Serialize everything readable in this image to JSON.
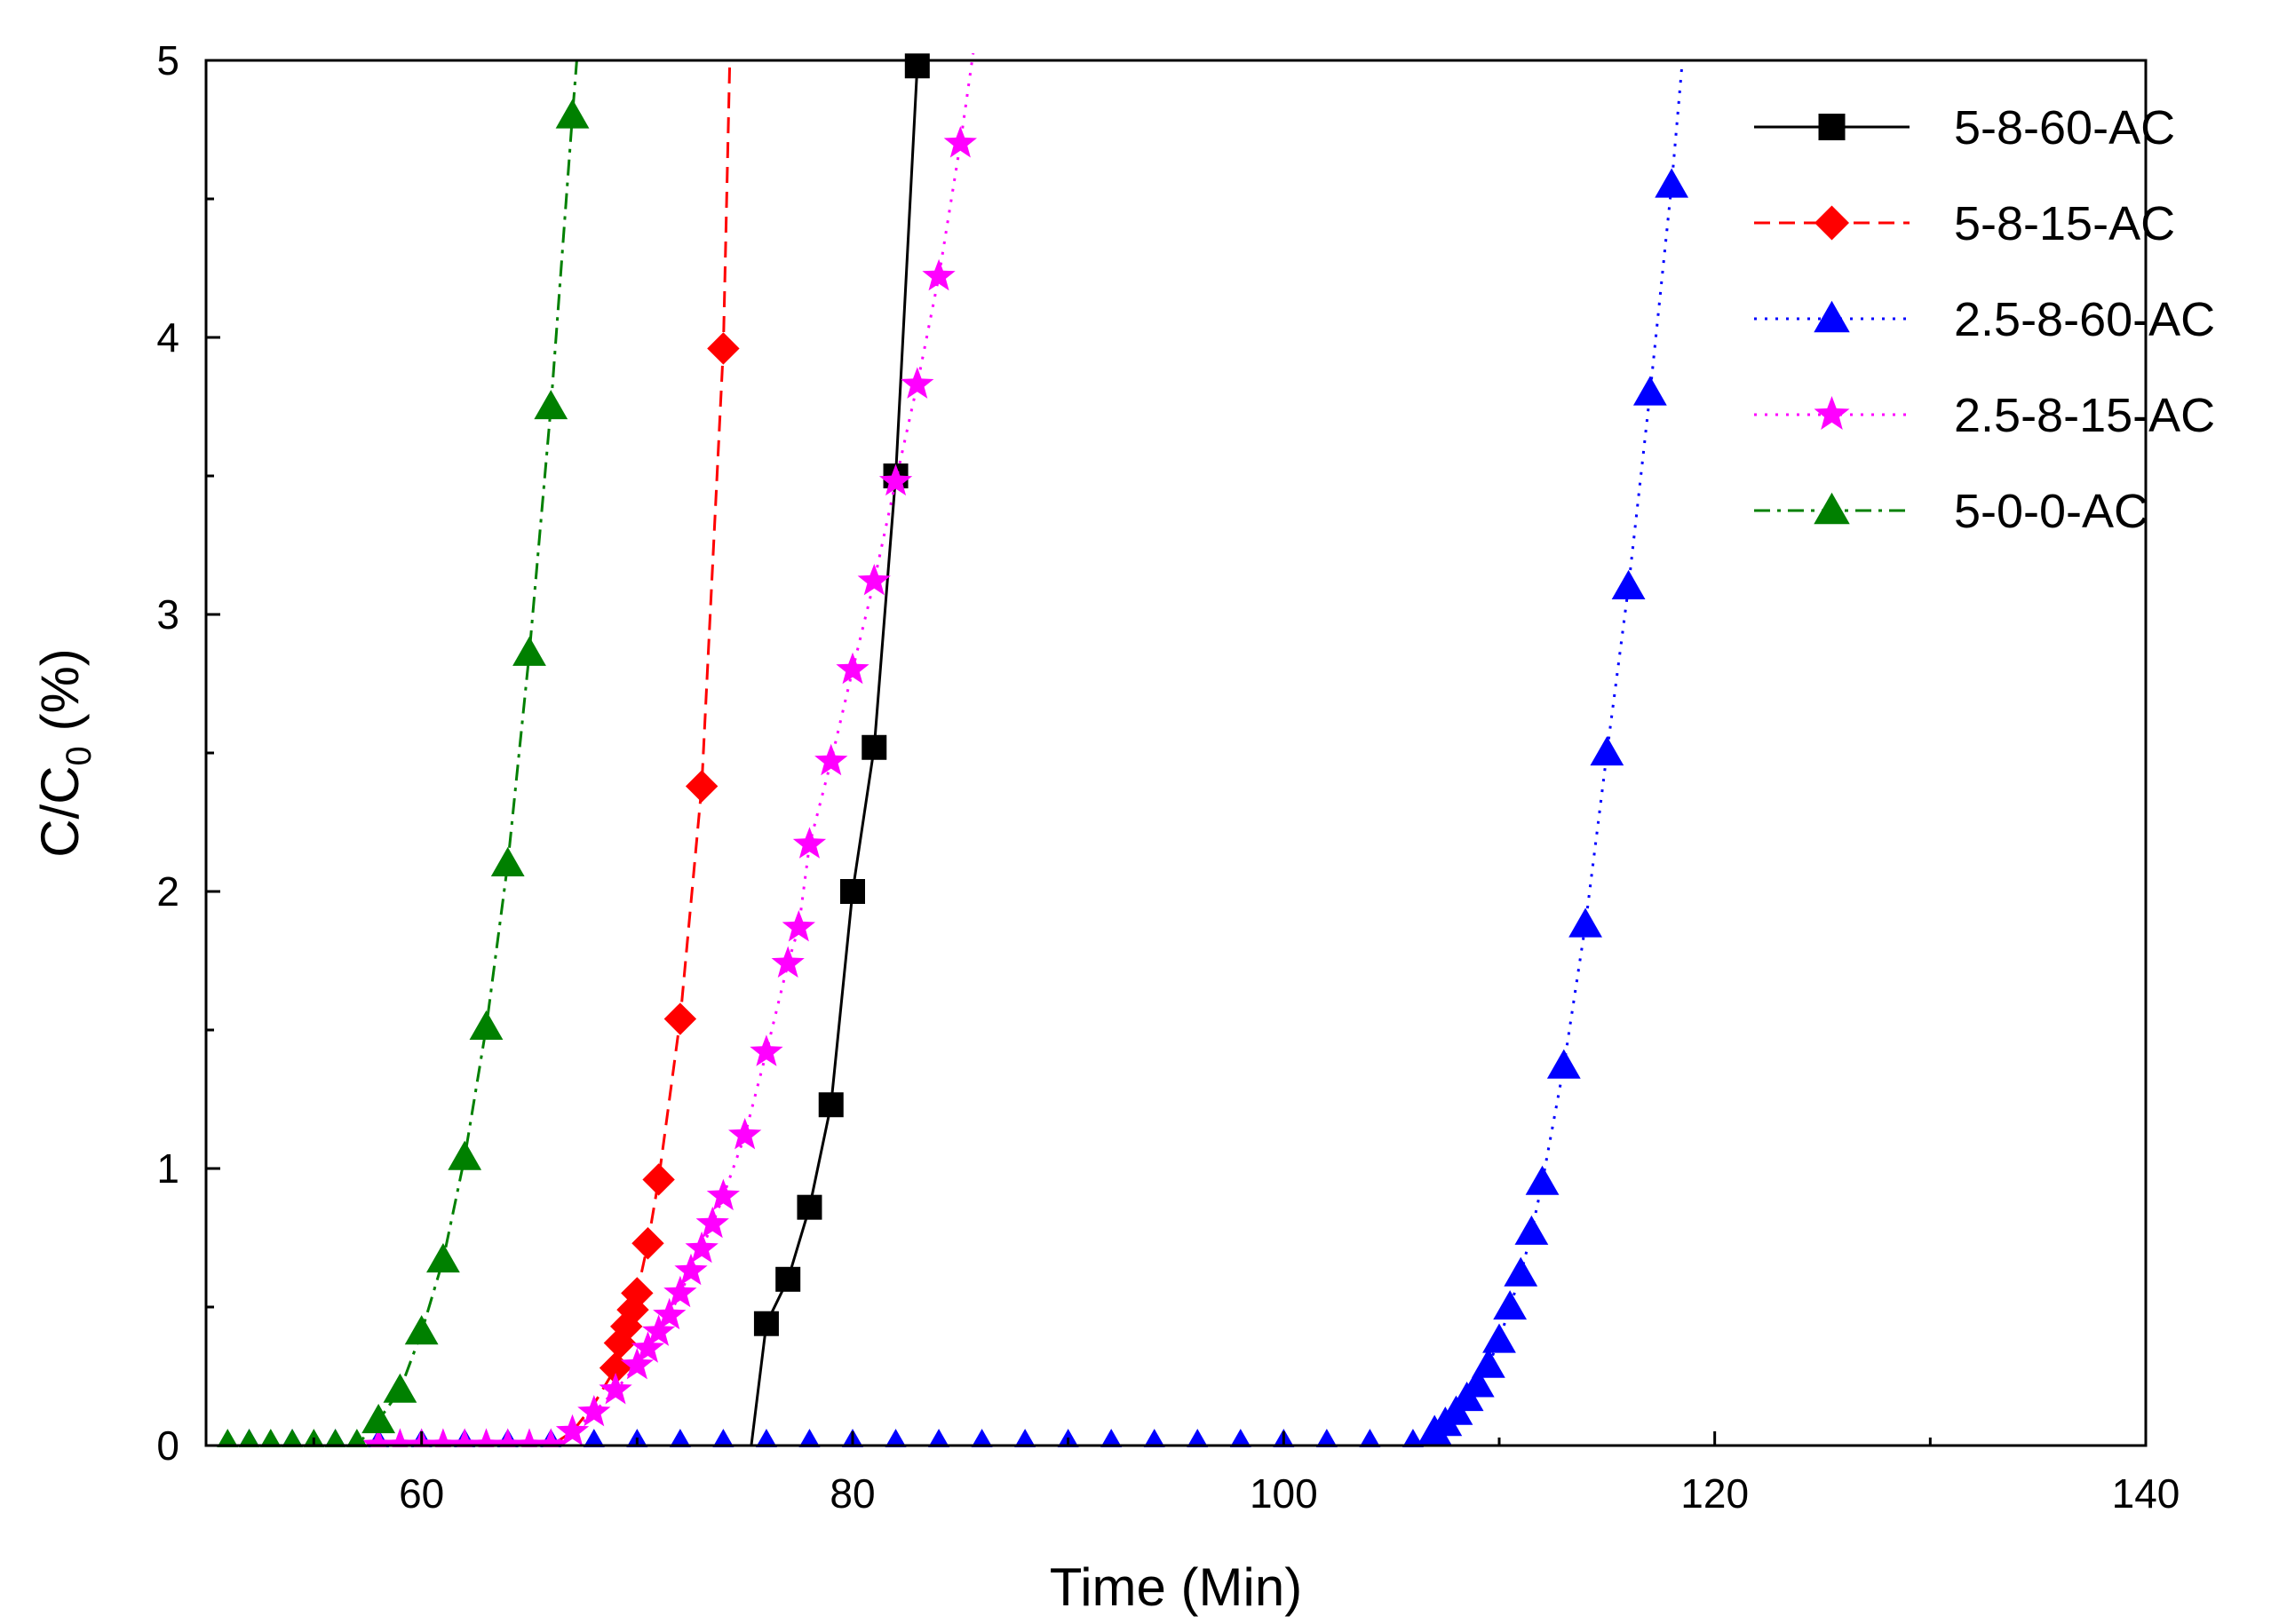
{
  "chart_data": {
    "type": "line",
    "title": "",
    "xlabel": "Time (Min)",
    "ylabel": {
      "main": "C/C",
      "sub": "0",
      "unit": " (%)"
    },
    "xlim": [
      50,
      140
    ],
    "ylim": [
      0,
      5
    ],
    "x_ticks": [
      60,
      80,
      100,
      120,
      140
    ],
    "y_ticks": [
      0,
      1,
      2,
      3,
      4,
      5
    ],
    "legend_position": "top-right",
    "series": [
      {
        "name": "5-8-60-AC",
        "color": "#000000",
        "marker": "square",
        "dash": "solid",
        "line": [
          [
            50,
            0
          ],
          [
            75.3,
            0
          ],
          [
            76,
            0.44
          ],
          [
            77,
            0.6
          ],
          [
            78,
            0.86
          ],
          [
            79,
            1.23
          ],
          [
            80,
            2.0
          ],
          [
            81,
            2.52
          ],
          [
            82,
            3.5
          ],
          [
            83,
            4.98
          ]
        ],
        "points": [
          [
            76,
            0.44
          ],
          [
            77,
            0.6
          ],
          [
            78,
            0.86
          ],
          [
            79,
            1.23
          ],
          [
            80,
            2.0
          ],
          [
            81,
            2.52
          ],
          [
            82,
            3.5
          ],
          [
            83,
            4.98
          ]
        ]
      },
      {
        "name": "5-8-15-AC",
        "color": "#ff0000",
        "marker": "diamond",
        "dash": "dashed",
        "line": [
          [
            50,
            0
          ],
          [
            66,
            0
          ],
          [
            67,
            0.05
          ],
          [
            68,
            0.15
          ],
          [
            69,
            0.28
          ],
          [
            69.2,
            0.37
          ],
          [
            69.5,
            0.43
          ],
          [
            69.8,
            0.49
          ],
          [
            70,
            0.55
          ],
          [
            70.5,
            0.73
          ],
          [
            71,
            0.96
          ],
          [
            72,
            1.54
          ],
          [
            73,
            2.38
          ],
          [
            74,
            3.96
          ],
          [
            74.3,
            5.0
          ]
        ],
        "points": [
          [
            69,
            0.28
          ],
          [
            69.2,
            0.37
          ],
          [
            69.5,
            0.43
          ],
          [
            69.8,
            0.49
          ],
          [
            70,
            0.55
          ],
          [
            70.5,
            0.73
          ],
          [
            71,
            0.96
          ],
          [
            72,
            1.54
          ],
          [
            73,
            2.38
          ],
          [
            74,
            3.96
          ]
        ]
      },
      {
        "name": "2.5-8-60-AC",
        "color": "#0000ff",
        "marker": "triangle",
        "dash": "dotted",
        "line": [
          [
            50,
            0
          ],
          [
            106.5,
            0
          ],
          [
            107,
            0.05
          ],
          [
            107.5,
            0.08
          ],
          [
            108,
            0.12
          ],
          [
            108.5,
            0.17
          ],
          [
            109,
            0.22
          ],
          [
            109.5,
            0.29
          ],
          [
            110,
            0.38
          ],
          [
            110.5,
            0.5
          ],
          [
            111,
            0.62
          ],
          [
            111.5,
            0.77
          ],
          [
            112,
            0.95
          ],
          [
            113,
            1.37
          ],
          [
            114,
            1.88
          ],
          [
            115,
            2.5
          ],
          [
            116,
            3.1
          ],
          [
            117,
            3.8
          ],
          [
            118,
            4.55
          ],
          [
            118.5,
            5.0
          ]
        ],
        "points": [
          [
            52,
            0
          ],
          [
            54,
            0
          ],
          [
            56,
            0
          ],
          [
            58,
            0
          ],
          [
            60,
            0
          ],
          [
            62,
            0
          ],
          [
            64,
            0
          ],
          [
            66,
            0
          ],
          [
            68,
            0
          ],
          [
            70,
            0
          ],
          [
            72,
            0
          ],
          [
            74,
            0
          ],
          [
            76,
            0
          ],
          [
            78,
            0
          ],
          [
            80,
            0
          ],
          [
            82,
            0
          ],
          [
            84,
            0
          ],
          [
            86,
            0
          ],
          [
            88,
            0
          ],
          [
            90,
            0
          ],
          [
            92,
            0
          ],
          [
            94,
            0
          ],
          [
            96,
            0
          ],
          [
            98,
            0
          ],
          [
            100,
            0
          ],
          [
            102,
            0
          ],
          [
            104,
            0
          ],
          [
            106,
            0
          ],
          [
            107,
            0.05
          ],
          [
            107.5,
            0.08
          ],
          [
            108,
            0.12
          ],
          [
            108.5,
            0.17
          ],
          [
            109,
            0.22
          ],
          [
            109.5,
            0.29
          ],
          [
            110,
            0.38
          ],
          [
            110.5,
            0.5
          ],
          [
            111,
            0.62
          ],
          [
            111.5,
            0.77
          ],
          [
            112,
            0.95
          ],
          [
            113,
            1.37
          ],
          [
            114,
            1.88
          ],
          [
            115,
            2.5
          ],
          [
            116,
            3.1
          ],
          [
            117,
            3.8
          ],
          [
            118,
            4.55
          ]
        ]
      },
      {
        "name": "2.5-8-15-AC",
        "color": "#ff00ff",
        "marker": "star",
        "dash": "dotted",
        "line": [
          [
            57,
            0
          ],
          [
            66,
            0
          ],
          [
            67,
            0.05
          ],
          [
            68,
            0.12
          ],
          [
            69,
            0.2
          ],
          [
            70,
            0.29
          ],
          [
            70.5,
            0.35
          ],
          [
            71,
            0.41
          ],
          [
            71.5,
            0.47
          ],
          [
            72,
            0.55
          ],
          [
            72.5,
            0.63
          ],
          [
            73,
            0.71
          ],
          [
            73.5,
            0.8
          ],
          [
            74,
            0.9
          ],
          [
            75,
            1.12
          ],
          [
            76,
            1.42
          ],
          [
            77,
            1.74
          ],
          [
            77.5,
            1.87
          ],
          [
            78,
            2.17
          ],
          [
            79,
            2.47
          ],
          [
            80,
            2.8
          ],
          [
            81,
            3.12
          ],
          [
            82,
            3.48
          ],
          [
            83,
            3.83
          ],
          [
            84,
            4.22
          ],
          [
            85,
            4.7
          ],
          [
            86,
            5.25
          ]
        ],
        "points": [
          [
            58,
            0
          ],
          [
            59,
            0
          ],
          [
            60,
            0
          ],
          [
            61,
            0
          ],
          [
            62,
            0
          ],
          [
            63,
            0
          ],
          [
            64,
            0
          ],
          [
            65,
            0
          ],
          [
            66,
            0
          ],
          [
            67,
            0.05
          ],
          [
            68,
            0.12
          ],
          [
            69,
            0.2
          ],
          [
            70,
            0.29
          ],
          [
            70.5,
            0.35
          ],
          [
            71,
            0.41
          ],
          [
            71.5,
            0.47
          ],
          [
            72,
            0.55
          ],
          [
            72.5,
            0.63
          ],
          [
            73,
            0.71
          ],
          [
            73.5,
            0.8
          ],
          [
            74,
            0.9
          ],
          [
            75,
            1.12
          ],
          [
            76,
            1.42
          ],
          [
            77,
            1.74
          ],
          [
            77.5,
            1.87
          ],
          [
            78,
            2.17
          ],
          [
            79,
            2.47
          ],
          [
            80,
            2.8
          ],
          [
            81,
            3.12
          ],
          [
            82,
            3.48
          ],
          [
            83,
            3.83
          ],
          [
            84,
            4.22
          ],
          [
            85,
            4.7
          ]
        ]
      },
      {
        "name": "5-0-0-AC",
        "color": "#008000",
        "marker": "triangle",
        "dash": "dashdot",
        "line": [
          [
            50,
            0
          ],
          [
            57,
            0
          ],
          [
            58,
            0.09
          ],
          [
            59,
            0.2
          ],
          [
            60,
            0.41
          ],
          [
            61,
            0.67
          ],
          [
            62,
            1.04
          ],
          [
            63,
            1.51
          ],
          [
            64,
            2.1
          ],
          [
            65,
            2.86
          ],
          [
            66,
            3.75
          ],
          [
            67,
            4.8
          ],
          [
            67.2,
            5.0
          ]
        ],
        "points": [
          [
            51,
            0
          ],
          [
            52,
            0
          ],
          [
            53,
            0
          ],
          [
            54,
            0
          ],
          [
            55,
            0
          ],
          [
            56,
            0
          ],
          [
            57,
            0
          ],
          [
            58,
            0.09
          ],
          [
            59,
            0.2
          ],
          [
            60,
            0.41
          ],
          [
            61,
            0.67
          ],
          [
            62,
            1.04
          ],
          [
            63,
            1.51
          ],
          [
            64,
            2.1
          ],
          [
            65,
            2.86
          ],
          [
            66,
            3.75
          ],
          [
            67,
            4.8
          ]
        ]
      }
    ]
  }
}
